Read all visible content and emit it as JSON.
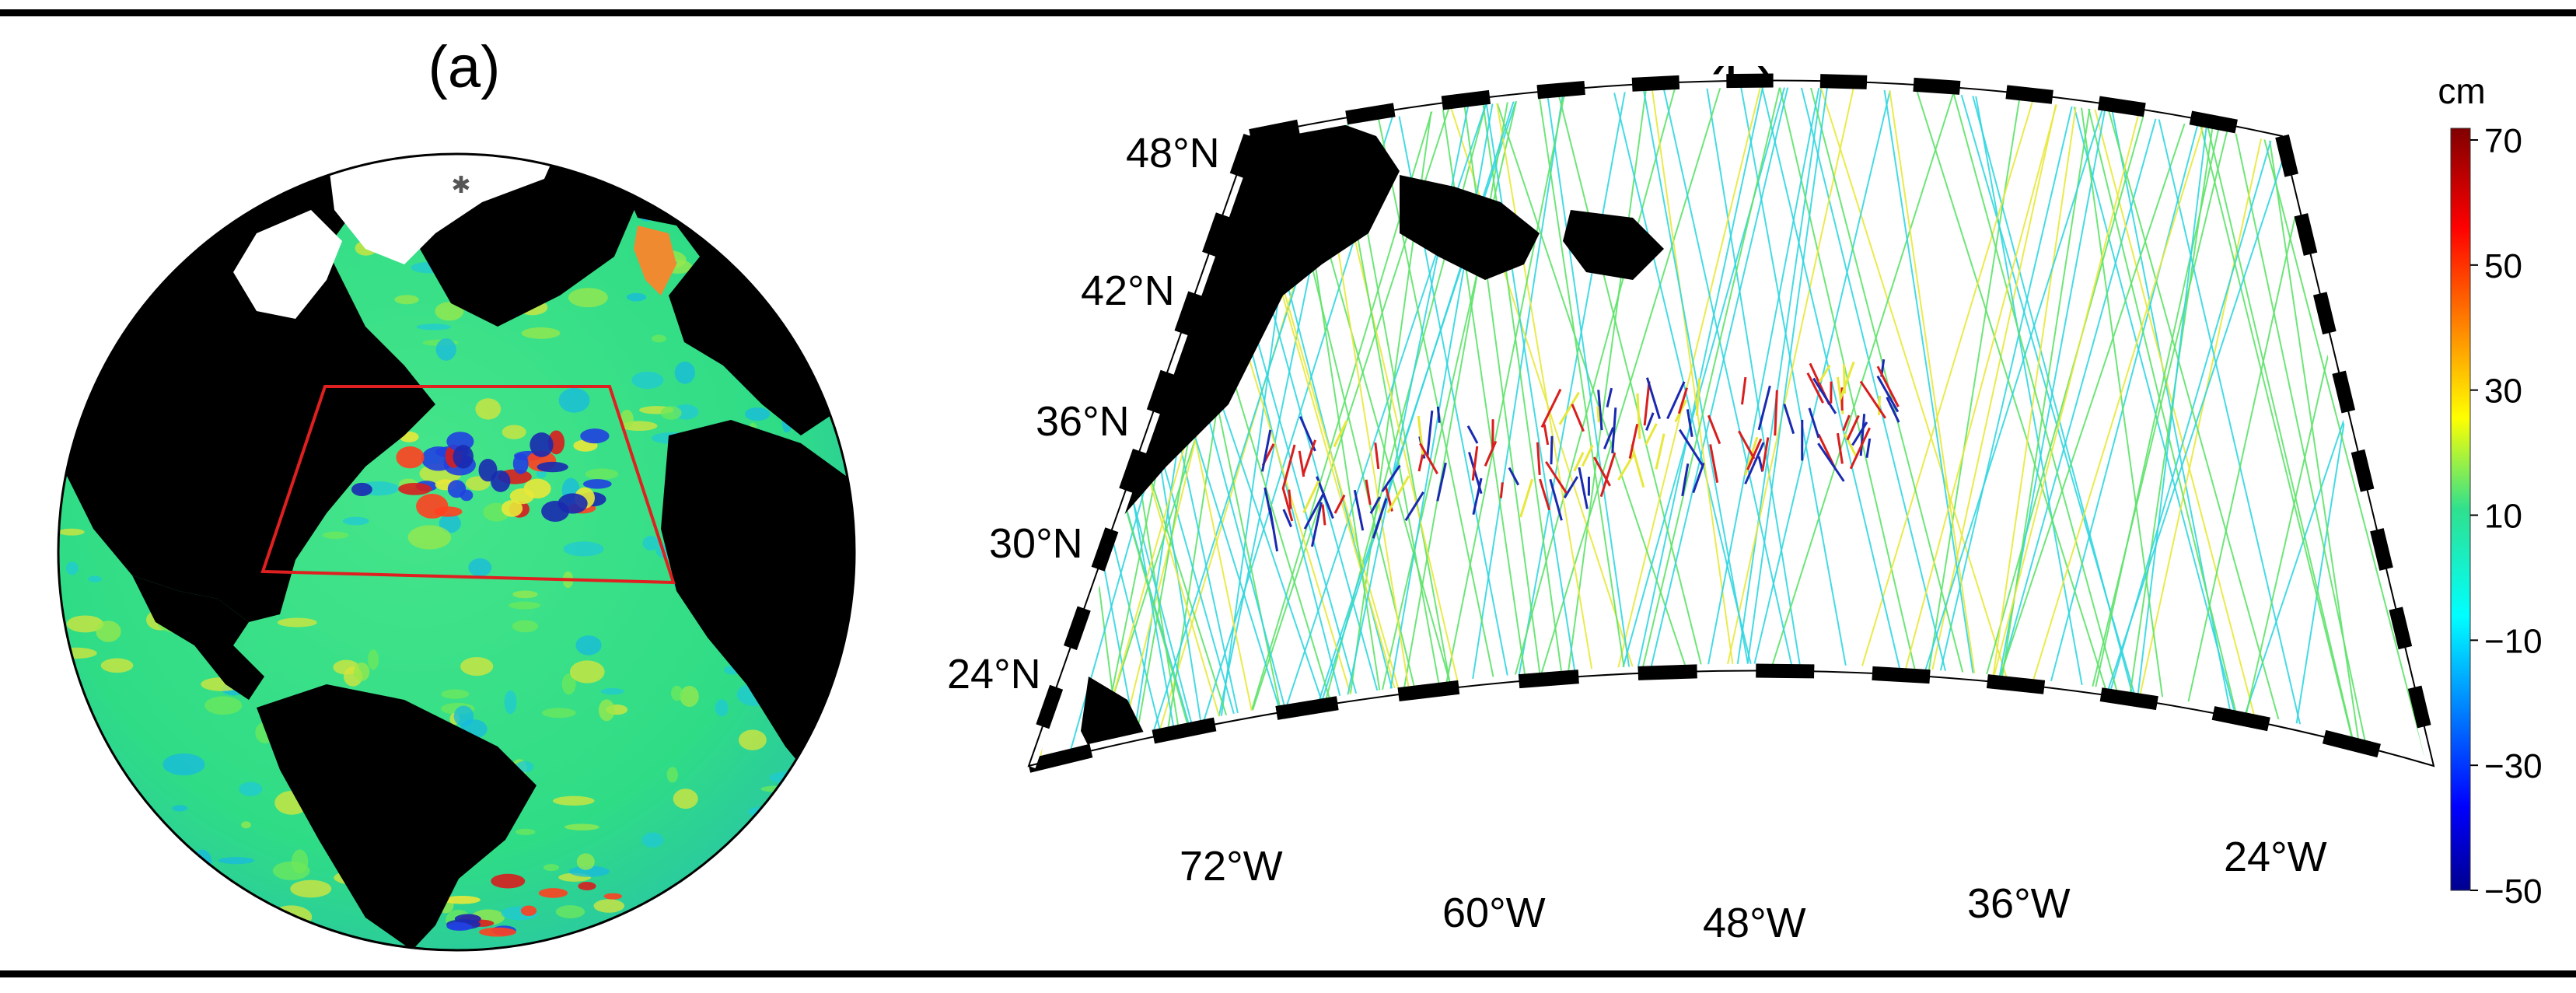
{
  "panel_a": {
    "label": "(a)"
  },
  "panel_b": {
    "label": "(b)",
    "lat_labels": [
      "48°N",
      "42°N",
      "36°N",
      "30°N",
      "24°N"
    ],
    "lon_labels": [
      "72°W",
      "60°W",
      "48°W",
      "36°W",
      "24°W"
    ]
  },
  "colorbar": {
    "unit": "cm",
    "ticks": [
      "70",
      "50",
      "30",
      "10",
      "−10",
      "−30",
      "−50"
    ],
    "min": -50,
    "max": 70
  },
  "colors": {
    "ocean_base": "#2fe08e",
    "land": "#000000",
    "ice": "#ffffff",
    "region_box": "#e02020",
    "track_cyan": "#31d6e0",
    "track_green": "#5ee36a",
    "track_yellow": "#e8e83a",
    "track_red": "#d81e1e",
    "track_blue": "#1a2ab0"
  }
}
